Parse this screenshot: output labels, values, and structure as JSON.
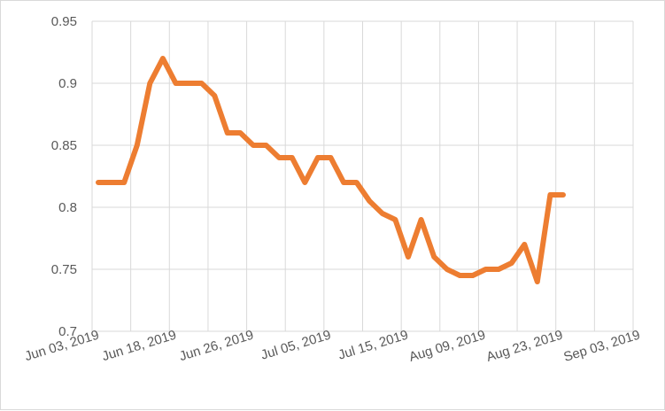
{
  "chart_data": {
    "type": "line",
    "title": "",
    "xlabel": "",
    "ylabel": "",
    "ylim": [
      0.7,
      0.95
    ],
    "yticks": [
      "0.7",
      "0.75",
      "0.8",
      "0.85",
      "0.9",
      "0.95"
    ],
    "xtick_labels": [
      "Jun 03, 2019",
      "Jun 18, 2019",
      "Jun 26, 2019",
      "Jul 05, 2019",
      "Jul 15, 2019",
      "Aug 09, 2019",
      "Aug 23, 2019",
      "Sep 03, 2019"
    ],
    "grid": true,
    "legend": "none",
    "line_color": "#ED7D31",
    "series": [
      {
        "values": [
          0.82,
          0.82,
          0.82,
          0.85,
          0.9,
          0.92,
          0.9,
          0.9,
          0.9,
          0.89,
          0.86,
          0.86,
          0.85,
          0.85,
          0.84,
          0.84,
          0.82,
          0.84,
          0.84,
          0.82,
          0.82,
          0.805,
          0.795,
          0.79,
          0.76,
          0.79,
          0.76,
          0.75,
          0.745,
          0.745,
          0.75,
          0.75,
          0.755,
          0.77,
          0.74,
          0.81,
          0.81
        ]
      }
    ]
  }
}
